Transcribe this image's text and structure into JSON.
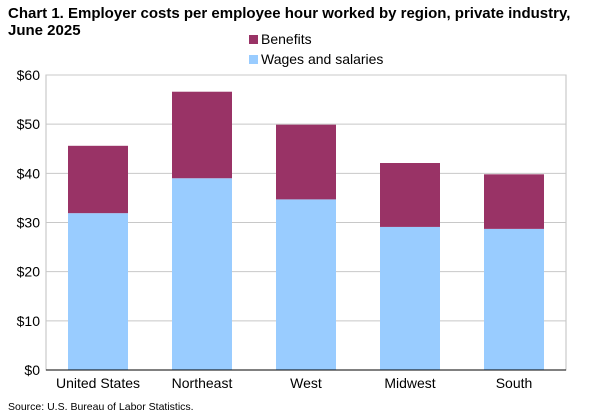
{
  "chart_data": {
    "type": "bar",
    "stacked": true,
    "title": "Chart 1. Employer costs per employee hour worked by region, private industry, June 2025",
    "categories": [
      "United States",
      "Northeast",
      "West",
      "Midwest",
      "South"
    ],
    "series": [
      {
        "name": "Wages and salaries",
        "color": "#99ccff",
        "values": [
          31.9,
          39.0,
          34.7,
          29.1,
          28.7
        ]
      },
      {
        "name": "Benefits",
        "color": "#993366",
        "values": [
          13.7,
          17.6,
          15.2,
          13.0,
          11.1
        ]
      }
    ],
    "ylim": [
      0,
      60
    ],
    "yticks": [
      0,
      10,
      20,
      30,
      40,
      50,
      60
    ],
    "ytick_labels": [
      "$0",
      "$10",
      "$20",
      "$30",
      "$40",
      "$50",
      "$60"
    ],
    "grid": true,
    "legend_position": "top-center",
    "source": "Source: U.S. Bureau of Labor Statistics."
  }
}
